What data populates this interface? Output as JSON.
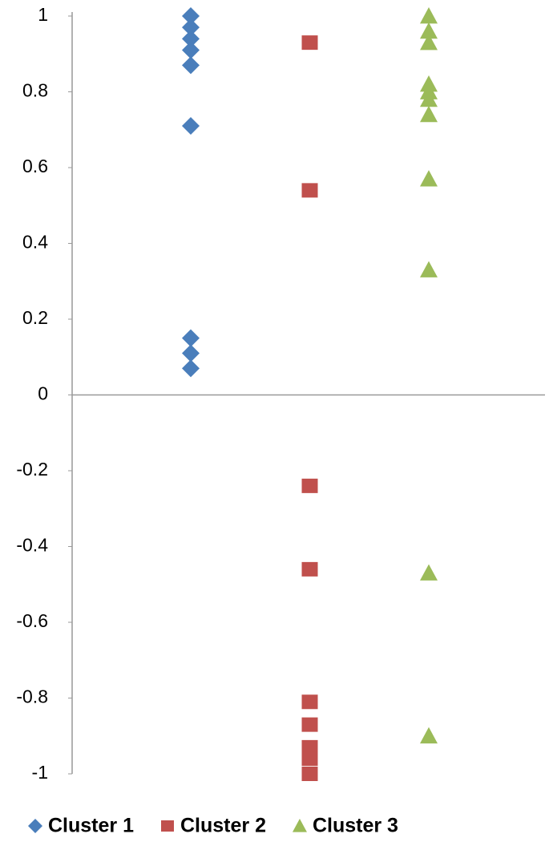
{
  "chart_data": {
    "type": "strip",
    "series": [
      {
        "name": "Cluster 1",
        "color": "#4a7ebb",
        "marker": "diamond",
        "values": [
          1.0,
          0.97,
          0.94,
          0.91,
          0.87,
          0.71,
          0.15,
          0.11,
          0.07
        ]
      },
      {
        "name": "Cluster 2",
        "color": "#c0504d",
        "marker": "square",
        "values": [
          0.93,
          0.54,
          -0.24,
          -0.46,
          -0.81,
          -0.87,
          -0.93,
          -0.96,
          -1.0
        ]
      },
      {
        "name": "Cluster 3",
        "color": "#9bbb59",
        "marker": "triangle",
        "values": [
          1.0,
          0.96,
          0.93,
          0.82,
          0.8,
          0.78,
          0.74,
          0.57,
          0.33,
          -0.47,
          -0.9
        ]
      }
    ],
    "ylim": [
      -1,
      1
    ],
    "yticks": [
      -1,
      -0.8,
      -0.6,
      -0.4,
      -0.2,
      0,
      0.2,
      0.4,
      0.6,
      0.8,
      1
    ],
    "legend": "bottom"
  }
}
